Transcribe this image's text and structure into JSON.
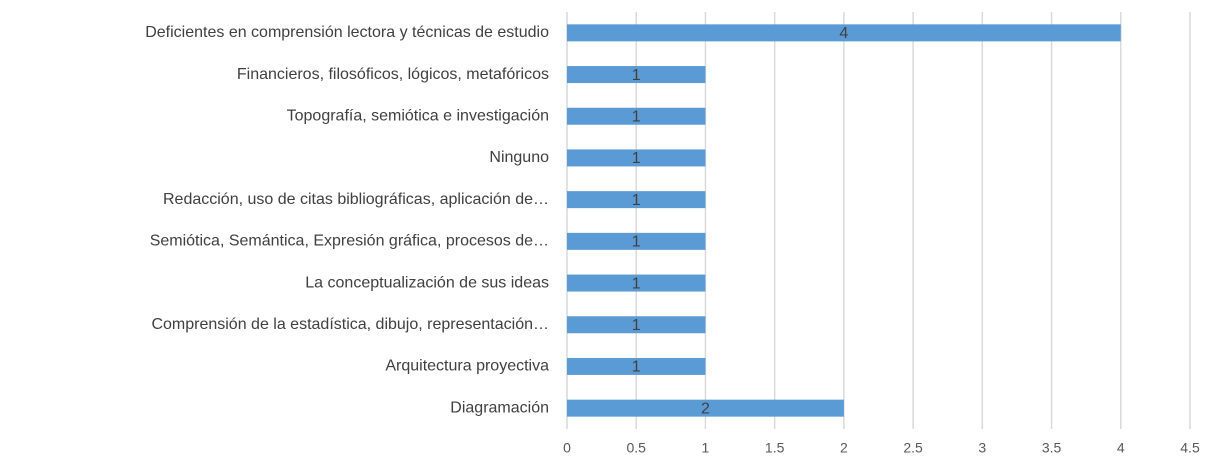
{
  "chart_data": {
    "type": "barh",
    "categories": [
      "Deficientes en comprensión lectora y técnicas de estudio",
      "Financieros, filosóficos, lógicos, metafóricos",
      "Topografía, semiótica e investigación",
      "Ninguno",
      "Redacción, uso de citas bibliográficas, aplicación de…",
      "Semiótica, Semántica, Expresión gráfica, procesos de…",
      "La conceptualización de sus ideas",
      "Comprensión de la estadística, dibujo, representación…",
      "Arquitectura proyectiva",
      "Diagramación"
    ],
    "values": [
      4,
      1,
      1,
      1,
      1,
      1,
      1,
      1,
      1,
      2
    ],
    "color": "#5b9bd5",
    "xlim": [
      0,
      4.5
    ],
    "xticks": [
      0,
      0.5,
      1,
      1.5,
      2,
      2.5,
      3,
      3.5,
      4,
      4.5
    ],
    "grid": true
  }
}
